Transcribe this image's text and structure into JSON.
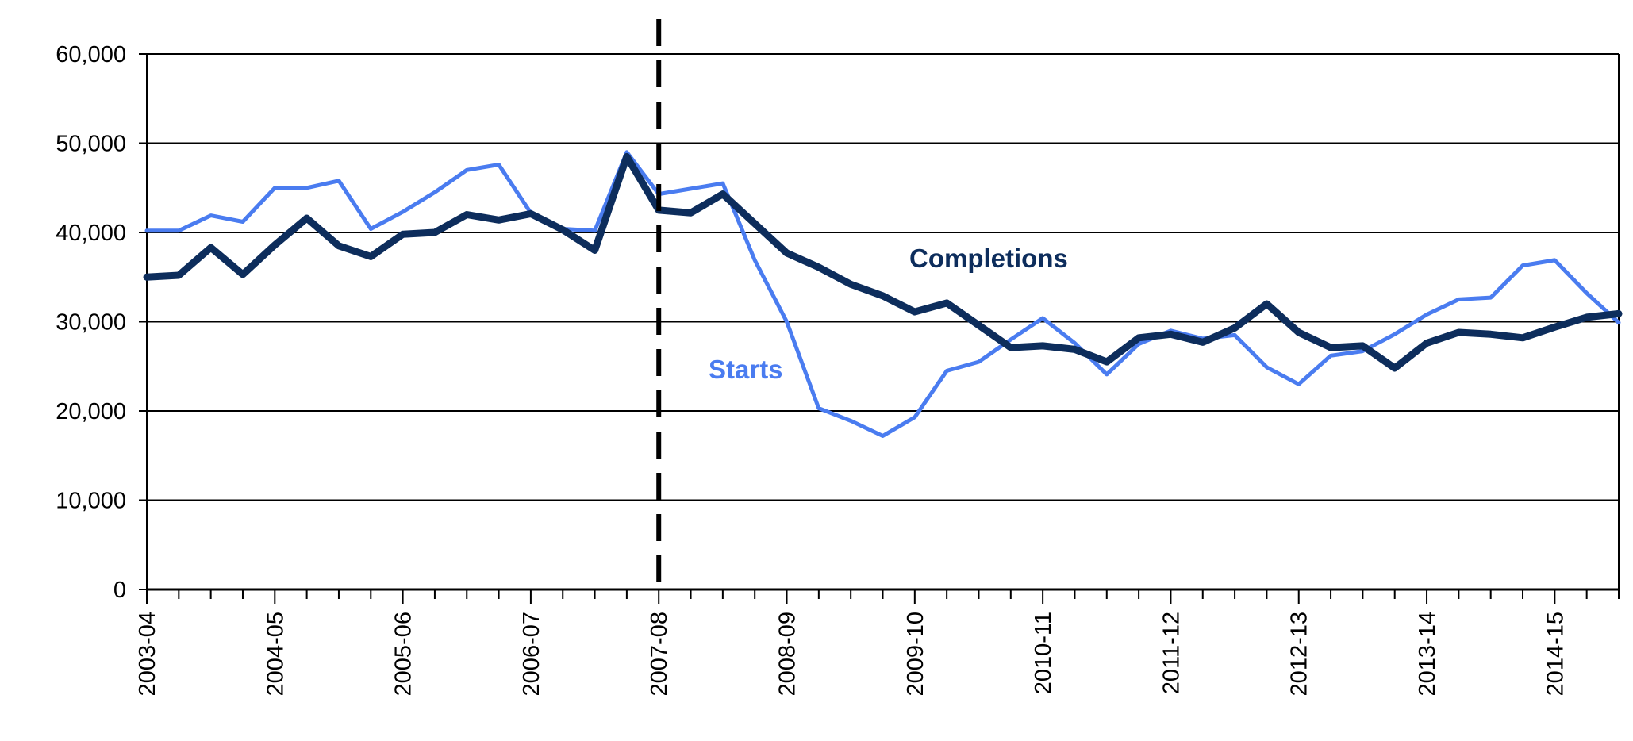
{
  "chart_data": {
    "type": "line",
    "title": "",
    "xlabel": "",
    "ylabel": "",
    "ylim": [
      0,
      60000
    ],
    "yticks": [
      0,
      10000,
      20000,
      30000,
      40000,
      50000,
      60000
    ],
    "ytick_labels": [
      "0",
      "10,000",
      "20,000",
      "30,000",
      "40,000",
      "50,000",
      "60,000"
    ],
    "x_tick_labels": [
      "2003-04",
      "2004-05",
      "2005-06",
      "2006-07",
      "2007-08",
      "2008-09",
      "2009-10",
      "2010-11",
      "2011-12",
      "2012-13",
      "2013-14",
      "2014-15"
    ],
    "quarters_per_year": 4,
    "marker_line_at_year": "2007-08",
    "series": [
      {
        "name": "Starts",
        "color": "#4a7cf0",
        "values": [
          40200,
          40200,
          41900,
          41200,
          45000,
          45000,
          45800,
          40400,
          42300,
          44500,
          47000,
          47600,
          42200,
          40400,
          40200,
          49000,
          44300,
          44900,
          45500,
          36900,
          30000,
          20300,
          18900,
          17200,
          19300,
          24500,
          25500,
          28000,
          30400,
          27600,
          24100,
          27500,
          29000,
          28100,
          28500,
          24900,
          23000,
          26200,
          26700,
          28600,
          30800,
          32500,
          32700,
          36300,
          36900,
          33200,
          29900
        ]
      },
      {
        "name": "Completions",
        "color": "#0d2d5c",
        "values": [
          35000,
          35200,
          38300,
          35300,
          38600,
          41600,
          38500,
          37300,
          39800,
          40000,
          42000,
          41400,
          42100,
          40300,
          38000,
          48500,
          42500,
          42200,
          44300,
          41000,
          37700,
          36100,
          34200,
          32900,
          31100,
          32100,
          29600,
          27100,
          27300,
          26900,
          25500,
          28200,
          28600,
          27700,
          29300,
          32000,
          28800,
          27100,
          27300,
          24800,
          27600,
          28800,
          28600,
          28200,
          29400,
          30500,
          30900
        ]
      }
    ],
    "annotations": [
      {
        "text": "Completions",
        "series": "Completions"
      },
      {
        "text": "Starts",
        "series": "Starts"
      }
    ]
  }
}
